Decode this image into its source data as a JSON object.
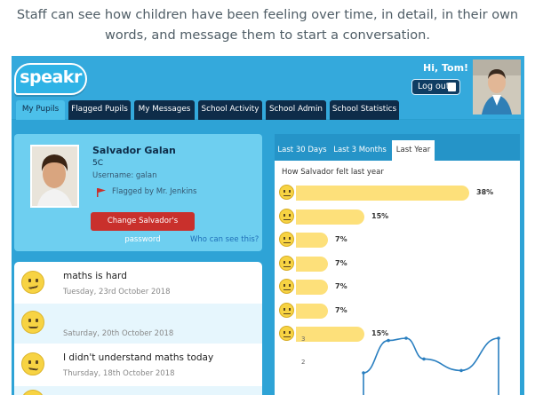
{
  "caption": "Staff can see how children have been feeling over time, in detail, in their own words, and message them to start a conversation.",
  "app": {
    "logo": "speakr",
    "greeting": "Hi, Tom!",
    "logout_label": "Log out"
  },
  "nav": {
    "tabs": [
      "My Pupils",
      "Flagged Pupils",
      "My Messages",
      "School Activity",
      "School Admin",
      "School Statistics"
    ],
    "active": "My Pupils"
  },
  "pupil": {
    "name": "Salvador Galan",
    "class": "5C",
    "username": "Username: galan",
    "flagged_by": "Flagged by Mr. Jenkins",
    "change_password_label": "Change Salvador's password",
    "who_can_see": "Who can see this?"
  },
  "feed": [
    {
      "text": "maths is hard",
      "date": "Tuesday, 23rd October 2018",
      "mood": "worried"
    },
    {
      "text": "",
      "date": "Saturday, 20th October 2018",
      "mood": "happy"
    },
    {
      "text": "I didn't understand maths today",
      "date": "Thursday, 18th October 2018",
      "mood": "confused"
    }
  ],
  "stats": {
    "tabs": [
      "Last 30 Days",
      "Last 3 Months",
      "Last Year"
    ],
    "active_tab": "Last Year",
    "title": "How Salvador felt last year"
  },
  "colors": {
    "header": "#34a9dc",
    "nav_tab": "#0e2c49",
    "bar": "#fde07a",
    "button_red": "#c9302c",
    "emoji": "#f7d343"
  },
  "chart_data": [
    {
      "type": "bar",
      "orientation": "horizontal",
      "categories": [
        "happy",
        "calm",
        "sad",
        "angry",
        "silly",
        "worried",
        "confused"
      ],
      "values": [
        38,
        15,
        7,
        7,
        7,
        7,
        15
      ],
      "value_labels": [
        "38%",
        "15%",
        "7%",
        "7%",
        "7%",
        "7%",
        "15%"
      ],
      "unit": "%"
    },
    {
      "type": "line",
      "ytick_labels": [
        "3",
        "2"
      ],
      "y": [
        1.5,
        2.9,
        3.0,
        2.1,
        1.6,
        3.0
      ]
    }
  ]
}
